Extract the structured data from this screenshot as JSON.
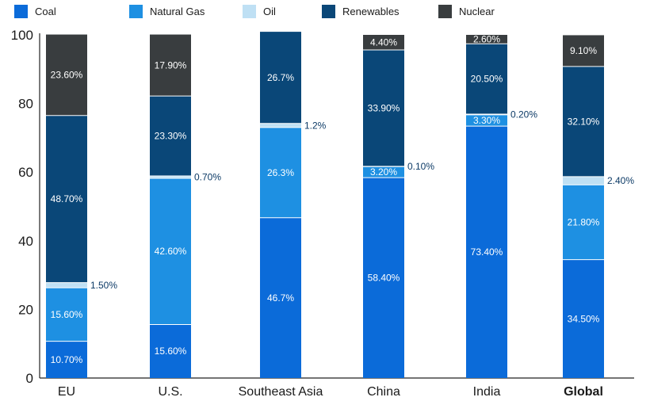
{
  "chart_data": {
    "type": "bar",
    "stacked": true,
    "title": "",
    "xlabel": "",
    "ylabel": "",
    "ylim": [
      0,
      100
    ],
    "yticks": [
      "0",
      "20",
      "40",
      "60",
      "80",
      "100"
    ],
    "grid": false,
    "legend_position": "top",
    "categories": [
      "EU",
      "U.S.",
      "Southeast Asia",
      "China",
      "India",
      "Global"
    ],
    "category_bold": [
      false,
      false,
      false,
      false,
      false,
      true
    ],
    "series": [
      {
        "name": "Coal",
        "color": "#0b6bd9",
        "values": [
          10.7,
          15.6,
          46.7,
          58.4,
          73.4,
          34.5
        ],
        "labels": [
          "10.70%",
          "15.60%",
          "46.7%",
          "58.40%",
          "73.40%",
          "34.50%"
        ],
        "label_outside": [
          false,
          false,
          false,
          false,
          false,
          false
        ]
      },
      {
        "name": "Natural Gas",
        "color": "#1e90e2",
        "values": [
          15.6,
          42.6,
          26.3,
          3.2,
          3.3,
          21.8
        ],
        "labels": [
          "15.60%",
          "42.60%",
          "26.3%",
          "3.20%",
          "3.30%",
          "21.80%"
        ],
        "label_outside": [
          false,
          false,
          false,
          false,
          false,
          false
        ]
      },
      {
        "name": "Oil",
        "color": "#bfe0f4",
        "values": [
          1.5,
          0.7,
          1.2,
          0.1,
          0.2,
          2.4
        ],
        "labels": [
          "1.50%",
          "0.70%",
          "1.2%",
          "0.10%",
          "0.20%",
          "2.40%"
        ],
        "label_outside": [
          true,
          true,
          true,
          true,
          true,
          true
        ]
      },
      {
        "name": "Renewables",
        "color": "#0a4778",
        "values": [
          48.7,
          23.3,
          26.7,
          33.9,
          20.5,
          32.1
        ],
        "labels": [
          "48.70%",
          "23.30%",
          "26.7%",
          "33.90%",
          "20.50%",
          "32.10%"
        ],
        "label_outside": [
          false,
          false,
          false,
          false,
          false,
          false
        ]
      },
      {
        "name": "Nuclear",
        "color": "#393d3f",
        "values": [
          23.6,
          17.9,
          0,
          4.4,
          2.6,
          9.1
        ],
        "labels": [
          "23.60%",
          "17.90%",
          "",
          "4.40%",
          "2.60%",
          "9.10%"
        ],
        "label_outside": [
          false,
          false,
          false,
          false,
          false,
          false
        ]
      }
    ]
  }
}
